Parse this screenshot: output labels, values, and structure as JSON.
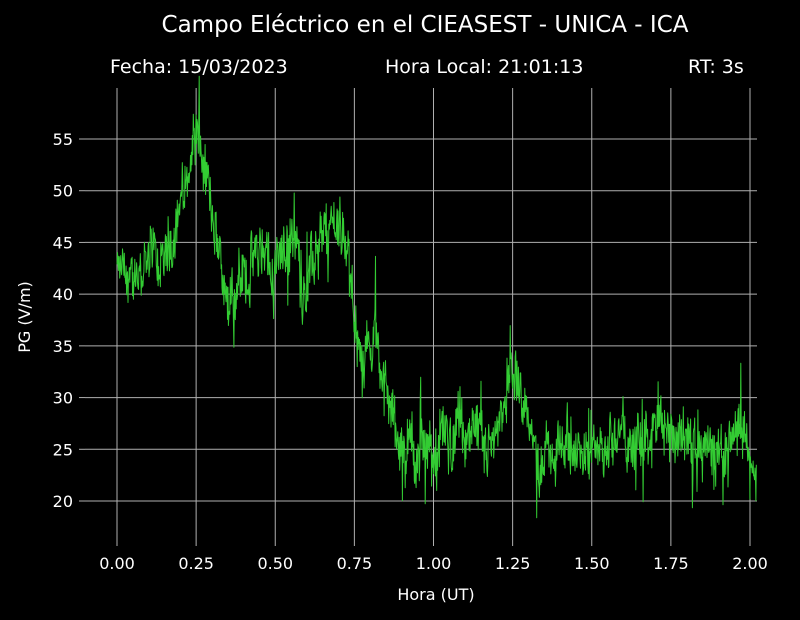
{
  "chart_data": {
    "type": "line",
    "title": "Campo Eléctrico en el CIEASEST - UNICA - ICA",
    "subtitle_date": "Fecha: 15/03/2023",
    "subtitle_time": "Hora Local: 21:01:13",
    "subtitle_rt": "RT: 3s",
    "xlabel": "Hora (UT)",
    "ylabel": "PG (V/m)",
    "xlim": [
      -0.1,
      2.1
    ],
    "ylim": [
      16,
      60
    ],
    "xticks": [
      "0.00",
      "0.25",
      "0.50",
      "0.75",
      "1.00",
      "1.25",
      "1.50",
      "1.75",
      "2.00"
    ],
    "yticks": [
      "20",
      "25",
      "30",
      "35",
      "40",
      "45",
      "50",
      "55"
    ],
    "grid": true,
    "colors": {
      "background": "#000000",
      "line": "#33cc33",
      "grid": "#b0b0b0",
      "text": "#ffffff"
    },
    "series": [
      {
        "x": [
          0.0,
          0.05,
          0.1,
          0.15,
          0.2,
          0.25,
          0.3,
          0.35,
          0.4,
          0.45,
          0.5,
          0.55,
          0.6,
          0.65,
          0.7,
          0.73,
          0.75,
          0.78,
          0.82,
          0.85,
          0.9,
          0.95,
          1.0,
          1.05,
          1.1,
          1.15,
          1.2,
          1.25,
          1.3,
          1.35,
          1.4,
          1.45,
          1.5,
          1.55,
          1.6,
          1.65,
          1.7,
          1.75,
          1.8,
          1.85,
          1.9,
          1.95,
          2.0,
          2.02
        ],
        "y": [
          42,
          41,
          44,
          43,
          49,
          55,
          48,
          40,
          42,
          44,
          42,
          46,
          41,
          45,
          47,
          45,
          36,
          35,
          37,
          30,
          26,
          25,
          24,
          26,
          27,
          25,
          27,
          32,
          26,
          24,
          25,
          24,
          26,
          25,
          26,
          25,
          27,
          26,
          27,
          25,
          24,
          27,
          25,
          24
        ]
      }
    ]
  }
}
